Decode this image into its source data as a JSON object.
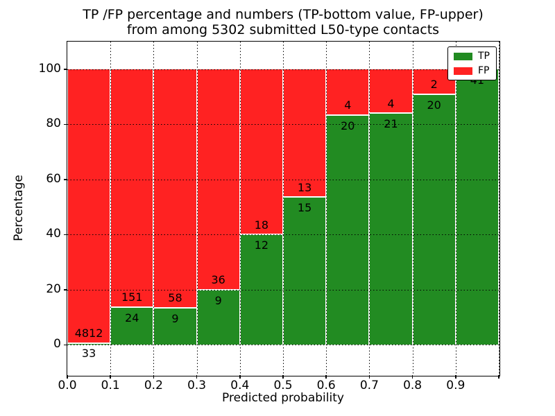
{
  "chart_data": {
    "type": "bar",
    "stacked": true,
    "normalized_to_percent": true,
    "title_lines": [
      "TP /FP percentage and numbers (TP-bottom value, FP-upper)",
      "from among 5302 submitted L50-type contacts"
    ],
    "xlabel": "Predicted probability",
    "ylabel": "Percentage",
    "total_contacts": 5302,
    "bins": [
      "0.0-0.1",
      "0.1-0.2",
      "0.2-0.3",
      "0.3-0.4",
      "0.4-0.5",
      "0.5-0.6",
      "0.6-0.7",
      "0.7-0.8",
      "0.8-0.9",
      "0.9-1.0"
    ],
    "series": [
      {
        "name": "TP",
        "color": "#228b22",
        "values": [
          33,
          24,
          9,
          9,
          12,
          15,
          20,
          21,
          20,
          41
        ]
      },
      {
        "name": "FP",
        "color": "#ff2222",
        "values": [
          4812,
          151,
          58,
          36,
          18,
          13,
          4,
          4,
          2,
          0
        ]
      }
    ],
    "tp_percent_of_bin": [
      0.68,
      13.71,
      13.43,
      20.0,
      40.0,
      53.57,
      83.33,
      84.0,
      90.91,
      100.0
    ],
    "x_axis": {
      "label": "Predicted probability",
      "tick_labels": [
        "0.0",
        "0.1",
        "0.2",
        "0.3",
        "0.4",
        "0.5",
        "0.6",
        "0.7",
        "0.8",
        "0.9"
      ],
      "tick_values": [
        0.0,
        0.1,
        0.2,
        0.3,
        0.4,
        0.5,
        0.6,
        0.7,
        0.8,
        0.9
      ],
      "lim": [
        0.0,
        1.0
      ]
    },
    "y_axis": {
      "label": "Percentage",
      "tick_labels": [
        "0",
        "20",
        "40",
        "60",
        "80",
        "100"
      ],
      "tick_values": [
        0,
        20,
        40,
        60,
        80,
        100
      ],
      "lim": [
        -11,
        110
      ]
    },
    "legend": {
      "position": "upper right",
      "entries": [
        {
          "label": "TP",
          "color": "#228b22"
        },
        {
          "label": "FP",
          "color": "#ff2222"
        }
      ]
    },
    "grid": {
      "horizontal": true,
      "vertical": true,
      "style": "dotted"
    },
    "colors": {
      "tp": "#228b22",
      "fp": "#ff2222",
      "background": "#ffffff",
      "text": "#000000",
      "bar_edge": "#ffffff"
    }
  }
}
